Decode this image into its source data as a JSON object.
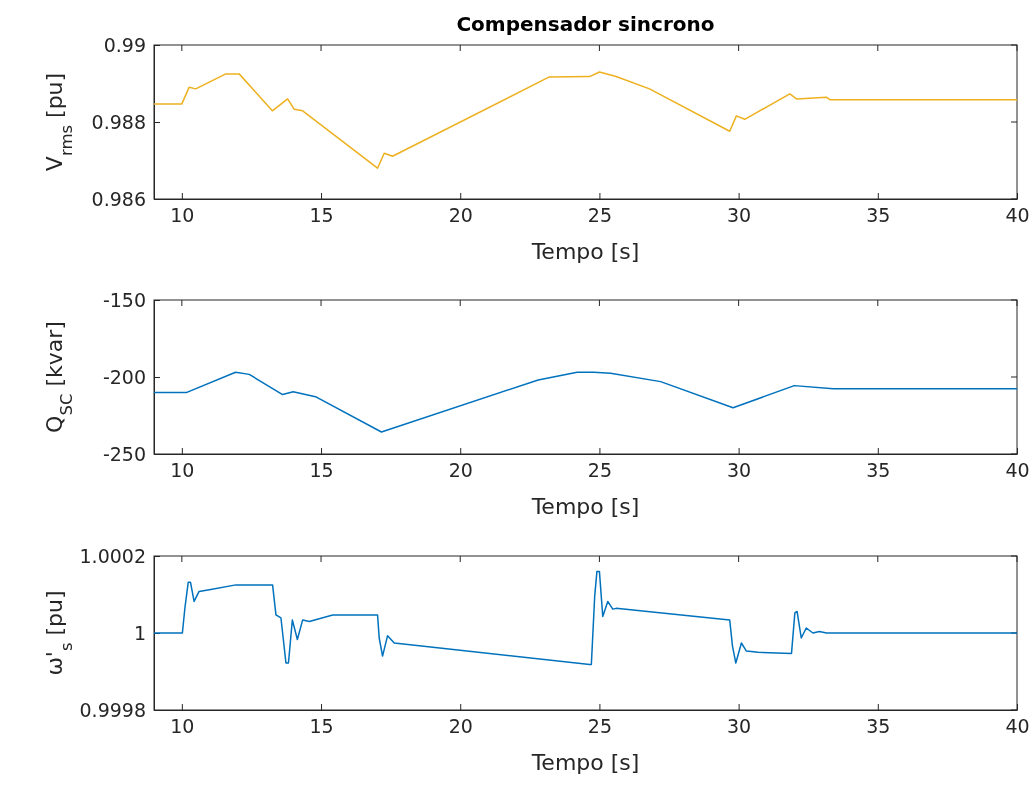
{
  "chart_data": [
    {
      "type": "line",
      "title": "Compensador sincrono",
      "xlabel": "Tempo [s]",
      "ylabel": "V$_{rms}$ [pu]",
      "xlim": [
        9,
        40
      ],
      "xticks": [
        10,
        15,
        20,
        25,
        30,
        35,
        40
      ],
      "ylim": [
        0.986,
        0.99
      ],
      "yticks": [
        0.986,
        0.988,
        0.99
      ],
      "grid": false,
      "x": [
        9,
        10.0,
        10.26,
        10.5,
        11.58,
        12.06,
        13.25,
        13.8,
        14.04,
        14.34,
        17.03,
        17.27,
        17.57,
        23.2,
        24.65,
        25.0,
        25.6,
        26.8,
        29.68,
        29.92,
        30.22,
        31.84,
        32.08,
        33.16,
        33.28,
        40
      ],
      "series": [
        {
          "color": "#edb120",
          "values": [
            0.98847,
            0.98847,
            0.9889,
            0.98886,
            0.98925,
            0.98925,
            0.98829,
            0.9886,
            0.98833,
            0.98829,
            0.9868,
            0.98719,
            0.98711,
            0.98917,
            0.98918,
            0.9893,
            0.98918,
            0.98886,
            0.98776,
            0.98816,
            0.98807,
            0.98873,
            0.9886,
            0.98864,
            0.98858,
            0.98858
          ]
        }
      ]
    },
    {
      "type": "line",
      "xlabel": "Tempo [s]",
      "ylabel": "Q$_{SC}$ [kvar]",
      "xlim": [
        9,
        40
      ],
      "xticks": [
        10,
        15,
        20,
        25,
        30,
        35,
        40
      ],
      "ylim": [
        -250,
        -150
      ],
      "yticks": [
        -250,
        -200,
        -150
      ],
      "grid": false,
      "x": [
        9,
        10.18,
        11.93,
        12.42,
        13.62,
        14.0,
        14.8,
        17.17,
        22.8,
        24.2,
        24.8,
        25.4,
        27.2,
        29.8,
        32.0,
        33.4,
        40
      ],
      "series": [
        {
          "color": "#0072bd",
          "values": [
            -210,
            -210,
            -196.9,
            -198.3,
            -211.4,
            -209.6,
            -212.8,
            -235.7,
            -201.9,
            -196.9,
            -196.9,
            -197.6,
            -203,
            -220,
            -205.6,
            -207.7,
            -207.7
          ]
        }
      ]
    },
    {
      "type": "line",
      "xlabel": "Tempo [s]",
      "ylabel": "ω'$_{s}$ [pu]",
      "xlim": [
        9,
        40
      ],
      "xticks": [
        10,
        15,
        20,
        25,
        30,
        35,
        40
      ],
      "ylim": [
        0.9998,
        1.0002
      ],
      "yticks": [
        0.9998,
        1,
        1.0002
      ],
      "grid": false,
      "x": [
        9,
        10.02,
        10.11,
        10.23,
        10.31,
        10.44,
        10.62,
        11.04,
        11.94,
        13.26,
        13.38,
        13.56,
        13.74,
        13.83,
        13.97,
        14.15,
        14.34,
        14.58,
        15.42,
        17.03,
        17.09,
        17.21,
        17.39,
        17.63,
        24.65,
        24.71,
        24.83,
        24.91,
        25.0,
        25.12,
        25.3,
        25.48,
        25.6,
        29.68,
        29.78,
        29.9,
        30.1,
        30.28,
        30.7,
        31.9,
        32.02,
        32.1,
        32.25,
        32.43,
        32.67,
        32.9,
        33.16,
        40
      ],
      "series": [
        {
          "color": "#0072bd",
          "values": [
            1,
            1,
            1.000065,
            1.000132,
            1.000132,
            1.000082,
            1.000108,
            1.000113,
            1.000125,
            1.000125,
            1.000047,
            1.000039,
            0.999922,
            0.999922,
            1.000034,
            0.999983,
            1.000034,
            1.00003,
            1.000047,
            1.000047,
            0.999987,
            0.99994,
            0.999993,
            0.999974,
            0.999918,
            0.999918,
            1.000095,
            1.00016,
            1.00016,
            1.000043,
            1.000082,
            1.000062,
            1.000064,
            1.000034,
            0.999966,
            0.999922,
            0.999974,
            0.999953,
            0.99995,
            0.999947,
            1.000052,
            1.000056,
            0.999987,
            1.000013,
            1,
            1.000004,
            1,
            1
          ]
        }
      ]
    }
  ]
}
